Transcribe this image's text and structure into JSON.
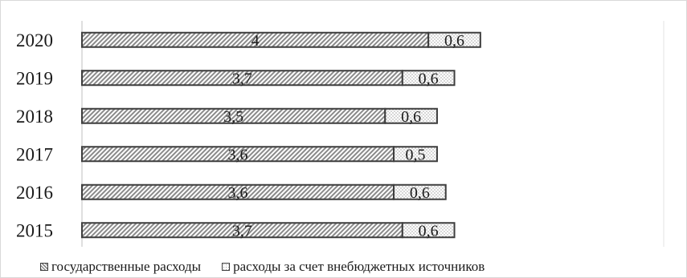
{
  "chart_data": {
    "type": "bar",
    "orientation": "horizontal",
    "stacked": true,
    "categories": [
      "2020",
      "2019",
      "2018",
      "2017",
      "2016",
      "2015"
    ],
    "series": [
      {
        "name": "государственные расходы",
        "values": [
          4,
          3.7,
          3.5,
          3.6,
          3.6,
          3.7
        ],
        "labels": [
          "4",
          "3,7",
          "3,5",
          "3,6",
          "3,6",
          "3,7"
        ],
        "pattern": "diagonal-hatch"
      },
      {
        "name": "расходы за счет внебюджетных источников",
        "values": [
          0.6,
          0.6,
          0.6,
          0.5,
          0.6,
          0.6
        ],
        "labels": [
          "0,6",
          "0,6",
          "0,6",
          "0,5",
          "0,6",
          "0,6"
        ],
        "pattern": "dots"
      }
    ],
    "xlim": [
      0,
      6.8
    ],
    "grid": false,
    "legend_position": "bottom-left",
    "colors": {
      "outline": "#3d3d3d",
      "hatch": "#8a8a8a",
      "dots": "#9a9a9a",
      "text": "#1a1a1a"
    }
  }
}
